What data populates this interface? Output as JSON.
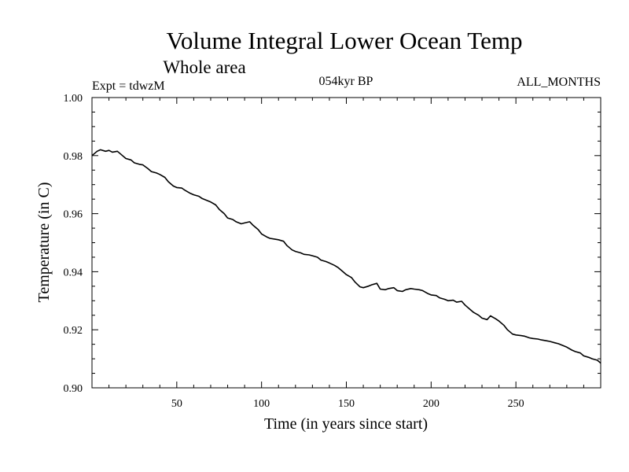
{
  "chart_data": {
    "type": "line",
    "title": "Volume Integral Lower Ocean Temp",
    "subtitle": "Whole area",
    "experiment": "Expt = tdwzM",
    "period": "054kyr BP",
    "months": "ALL_MONTHS",
    "xlabel": "Time (in years since start)",
    "ylabel": "Temperature (in C)",
    "xlim": [
      0,
      300
    ],
    "ylim": [
      0.9,
      1.0
    ],
    "x_ticks": [
      50,
      100,
      150,
      200,
      250
    ],
    "x_tick_labels": [
      "50",
      "100",
      "150",
      "200",
      "250"
    ],
    "y_ticks": [
      0.9,
      0.92,
      0.94,
      0.96,
      0.98,
      1.0
    ],
    "y_tick_labels": [
      "0.90",
      "0.92",
      "0.94",
      "0.96",
      "0.98",
      "1.00"
    ],
    "grid": false,
    "series": [
      {
        "x": [
          0,
          3,
          5,
          8,
          10,
          12,
          15,
          18,
          20,
          23,
          25,
          28,
          30,
          33,
          35,
          38,
          40,
          43,
          45,
          48,
          50,
          53,
          55,
          58,
          60,
          63,
          65,
          68,
          70,
          73,
          75,
          78,
          80,
          83,
          85,
          88,
          90,
          93,
          95,
          98,
          100,
          103,
          105,
          108,
          110,
          113,
          115,
          118,
          120,
          123,
          125,
          128,
          130,
          133,
          135,
          138,
          140,
          143,
          145,
          148,
          150,
          153,
          155,
          158,
          160,
          163,
          165,
          168,
          170,
          173,
          175,
          178,
          180,
          183,
          185,
          188,
          190,
          193,
          195,
          198,
          200,
          203,
          205,
          208,
          210,
          213,
          215,
          218,
          220,
          223,
          225,
          228,
          230,
          233,
          235,
          238,
          240,
          243,
          245,
          248,
          250,
          253,
          255,
          258,
          260,
          263,
          265,
          268,
          270,
          273,
          275,
          278,
          280,
          283,
          285,
          288,
          290,
          293,
          295,
          298,
          300
        ],
        "y": [
          0.98,
          0.9815,
          0.982,
          0.9815,
          0.9818,
          0.9812,
          0.9815,
          0.98,
          0.979,
          0.9785,
          0.9775,
          0.977,
          0.9768,
          0.9755,
          0.9745,
          0.974,
          0.9735,
          0.9725,
          0.971,
          0.9695,
          0.969,
          0.9688,
          0.968,
          0.967,
          0.9665,
          0.966,
          0.9652,
          0.9645,
          0.964,
          0.963,
          0.9615,
          0.96,
          0.9585,
          0.958,
          0.9572,
          0.9565,
          0.9568,
          0.9572,
          0.956,
          0.9545,
          0.953,
          0.952,
          0.9515,
          0.9512,
          0.951,
          0.9505,
          0.949,
          0.9475,
          0.947,
          0.9465,
          0.946,
          0.9458,
          0.9455,
          0.945,
          0.944,
          0.9435,
          0.943,
          0.9422,
          0.9415,
          0.94,
          0.939,
          0.938,
          0.9365,
          0.9348,
          0.9345,
          0.935,
          0.9355,
          0.936,
          0.934,
          0.9338,
          0.9342,
          0.9345,
          0.9335,
          0.9332,
          0.9338,
          0.9342,
          0.934,
          0.9338,
          0.9335,
          0.9325,
          0.932,
          0.9318,
          0.931,
          0.9305,
          0.93,
          0.9302,
          0.9295,
          0.9298,
          0.9285,
          0.927,
          0.926,
          0.925,
          0.924,
          0.9235,
          0.9248,
          0.9238,
          0.923,
          0.9215,
          0.92,
          0.9185,
          0.9182,
          0.918,
          0.9178,
          0.9172,
          0.917,
          0.9168,
          0.9165,
          0.9162,
          0.916,
          0.9155,
          0.9152,
          0.9145,
          0.914,
          0.913,
          0.9125,
          0.912,
          0.911,
          0.9105,
          0.91,
          0.9095,
          0.9085
        ]
      }
    ]
  }
}
